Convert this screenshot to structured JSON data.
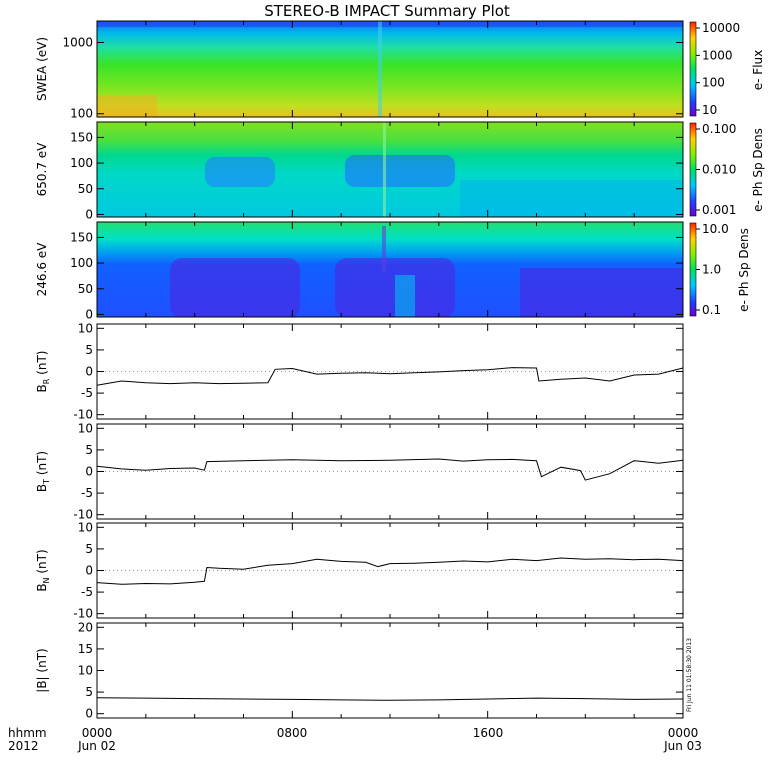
{
  "title": "STEREO-B IMPACT Summary Plot",
  "x_axis": {
    "ticks": [
      "0000",
      "0800",
      "1600",
      "0000"
    ],
    "sublabels": [
      "Jun 02",
      "",
      "",
      "Jun 03"
    ],
    "left_label_top": "hhmm",
    "left_label_bottom": "2012",
    "range_hours": [
      0,
      24
    ]
  },
  "timestamp": "Fri Jun 11 01:58:30 2013",
  "chart_data": [
    {
      "type": "heatmap",
      "ylabel": "SWEA (eV)",
      "yscale": "log",
      "ylim": [
        90,
        2000
      ],
      "yticks": [
        "1000",
        "100"
      ],
      "colorbar": {
        "label": "e- Flux",
        "scale": "log",
        "ticks": [
          "10000",
          "1000",
          "100",
          "10"
        ]
      },
      "colors": {
        "high": "#e8a020",
        "mid": "#28e428",
        "low": "#2050f0"
      },
      "notable_feature_hours": [
        12.0
      ]
    },
    {
      "type": "heatmap",
      "ylabel": "650.7 eV",
      "ylim": [
        -5,
        180
      ],
      "yticks": [
        "150",
        "100",
        "50",
        "0"
      ],
      "colorbar": {
        "label": "e- Ph Sp Dens",
        "scale": "log",
        "ticks": [
          "0.100",
          "0.010",
          "0.001"
        ]
      }
    },
    {
      "type": "heatmap",
      "ylabel": "246.6 eV",
      "ylim": [
        -5,
        180
      ],
      "yticks": [
        "150",
        "100",
        "50",
        "0"
      ],
      "colorbar": {
        "label": "e- Ph Sp Dens",
        "scale": "log",
        "ticks": [
          "10.0",
          "1.0",
          "0.1"
        ]
      }
    },
    {
      "type": "line",
      "ylabel": "B",
      "ylabel_sub": "R",
      "ylabel_unit": "(nT)",
      "ylim": [
        -11,
        11
      ],
      "yticks": [
        -10,
        -5,
        0,
        5,
        10
      ],
      "x": [
        0,
        1,
        2,
        3,
        4,
        5,
        6,
        7,
        7.3,
        8,
        9,
        10,
        11,
        12,
        13,
        14,
        15,
        16,
        17,
        18,
        18.1,
        19,
        20,
        21,
        22,
        23,
        24
      ],
      "y": [
        -3.2,
        -2.2,
        -2.6,
        -2.8,
        -2.6,
        -2.8,
        -2.7,
        -2.6,
        0.5,
        0.7,
        -0.6,
        -0.4,
        -0.3,
        -0.5,
        -0.3,
        -0.1,
        0.2,
        0.4,
        0.9,
        0.8,
        -2.2,
        -1.8,
        -1.5,
        -2.2,
        -0.8,
        -0.6,
        0.8
      ]
    },
    {
      "type": "line",
      "ylabel": "B",
      "ylabel_sub": "T",
      "ylabel_unit": "(nT)",
      "ylim": [
        -11,
        11
      ],
      "yticks": [
        -10,
        -5,
        0,
        5,
        10
      ],
      "x": [
        0,
        1,
        2,
        3,
        4,
        4.4,
        4.5,
        6,
        8,
        10,
        12,
        14,
        15,
        16,
        17,
        18,
        18.2,
        19,
        19.8,
        20,
        21,
        22,
        23,
        24
      ],
      "y": [
        1.2,
        0.6,
        0.3,
        0.7,
        0.8,
        0.3,
        2.3,
        2.5,
        2.7,
        2.5,
        2.6,
        2.9,
        2.4,
        2.7,
        2.8,
        2.5,
        -1.2,
        1.0,
        0.2,
        -2.0,
        -0.5,
        2.5,
        1.9,
        2.6
      ]
    },
    {
      "type": "line",
      "ylabel": "B",
      "ylabel_sub": "N",
      "ylabel_unit": "(nT)",
      "ylim": [
        -11,
        11
      ],
      "yticks": [
        -10,
        -5,
        0,
        5,
        10
      ],
      "x": [
        0,
        1,
        2,
        3,
        4,
        4.4,
        4.5,
        5,
        6,
        7,
        8,
        9,
        10,
        11,
        11.5,
        12,
        13,
        14,
        15,
        16,
        17,
        18,
        19,
        20,
        21,
        22,
        23,
        24
      ],
      "y": [
        -2.8,
        -3.2,
        -3.0,
        -3.1,
        -2.7,
        -2.5,
        0.7,
        0.5,
        0.3,
        1.2,
        1.6,
        2.6,
        2.1,
        1.9,
        0.9,
        1.6,
        1.7,
        1.9,
        2.2,
        2.0,
        2.6,
        2.3,
        2.9,
        2.6,
        2.7,
        2.5,
        2.6,
        2.3
      ]
    },
    {
      "type": "line",
      "ylabel": "|B| (nT)",
      "ylim": [
        -1,
        21
      ],
      "yticks": [
        0,
        5,
        10,
        15,
        20
      ],
      "x": [
        0,
        2,
        4,
        6,
        8,
        10,
        12,
        14,
        16,
        18,
        20,
        22,
        24
      ],
      "y": [
        3.7,
        3.6,
        3.5,
        3.4,
        3.3,
        3.2,
        3.1,
        3.2,
        3.4,
        3.6,
        3.5,
        3.3,
        3.4
      ]
    }
  ]
}
